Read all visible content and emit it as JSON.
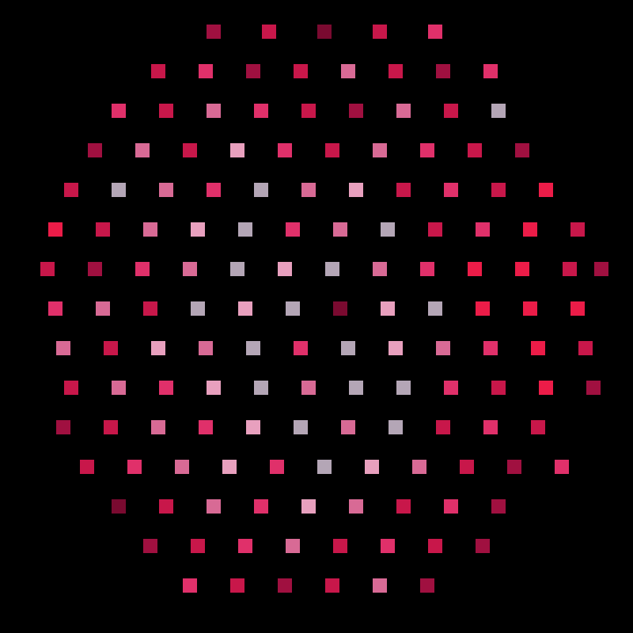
{
  "chart_data": {
    "type": "scatter",
    "marker": "s",
    "tick_labels": false,
    "grid": false,
    "xlim": [
      0,
      800
    ],
    "ylim": [
      800,
      0
    ],
    "x": [
      270,
      340,
      410,
      480,
      550,
      200,
      260,
      320,
      380,
      440,
      500,
      560,
      620,
      150,
      210,
      270,
      330,
      390,
      450,
      510,
      570,
      630,
      120,
      180,
      240,
      300,
      360,
      420,
      480,
      540,
      600,
      660,
      90,
      150,
      210,
      270,
      330,
      390,
      450,
      510,
      570,
      630,
      690,
      70,
      130,
      190,
      250,
      310,
      370,
      430,
      490,
      550,
      610,
      670,
      730,
      60,
      120,
      180,
      240,
      300,
      360,
      420,
      480,
      540,
      600,
      660,
      720,
      760,
      70,
      130,
      190,
      250,
      310,
      370,
      430,
      490,
      550,
      610,
      670,
      730,
      80,
      140,
      200,
      260,
      320,
      380,
      440,
      500,
      560,
      620,
      680,
      740,
      90,
      150,
      210,
      270,
      330,
      390,
      450,
      510,
      570,
      630,
      690,
      750,
      80,
      140,
      200,
      260,
      320,
      380,
      440,
      500,
      560,
      620,
      680,
      110,
      170,
      230,
      290,
      350,
      410,
      470,
      530,
      590,
      650,
      710,
      150,
      210,
      270,
      330,
      390,
      450,
      510,
      570,
      630,
      190,
      250,
      310,
      370,
      430,
      490,
      550,
      610,
      240,
      300,
      360,
      420,
      480,
      540
    ],
    "y": [
      40,
      40,
      40,
      40,
      40,
      90,
      90,
      90,
      90,
      90,
      90,
      90,
      90,
      140,
      140,
      140,
      140,
      140,
      140,
      140,
      140,
      140,
      190,
      190,
      190,
      190,
      190,
      190,
      190,
      190,
      190,
      190,
      240,
      240,
      240,
      240,
      240,
      240,
      240,
      240,
      240,
      240,
      240,
      290,
      290,
      290,
      290,
      290,
      290,
      290,
      290,
      290,
      290,
      290,
      290,
      340,
      340,
      340,
      340,
      340,
      340,
      340,
      340,
      340,
      340,
      340,
      340,
      340,
      390,
      390,
      390,
      390,
      390,
      390,
      390,
      390,
      390,
      390,
      390,
      390,
      440,
      440,
      440,
      440,
      440,
      440,
      440,
      440,
      440,
      440,
      440,
      440,
      490,
      490,
      490,
      490,
      490,
      490,
      490,
      490,
      490,
      490,
      490,
      490,
      540,
      540,
      540,
      540,
      540,
      540,
      540,
      540,
      540,
      540,
      540,
      590,
      590,
      590,
      590,
      590,
      590,
      590,
      590,
      590,
      590,
      590,
      640,
      640,
      640,
      640,
      640,
      640,
      640,
      640,
      640,
      690,
      690,
      690,
      690,
      690,
      690,
      690,
      690,
      740,
      740,
      740,
      740,
      740,
      740
    ],
    "colors": [
      "#a01040",
      "#c8174a",
      "#7a0a30",
      "#c8174a",
      "#e0306a",
      "#c8174a",
      "#e0306a",
      "#a01040",
      "#c8174a",
      "#d86a95",
      "#c8174a",
      "#a01040",
      "#e0306a",
      "#e0306a",
      "#c8174a",
      "#d86a95",
      "#e0306a",
      "#c8174a",
      "#a01040",
      "#d86a95",
      "#c8174a",
      "#b4a6b6",
      "#a01040",
      "#d86a95",
      "#c8174a",
      "#e8a0be",
      "#e0306a",
      "#c8174a",
      "#d86a95",
      "#e0306a",
      "#c8174a",
      "#a01040",
      "#c8174a",
      "#b4a6b6",
      "#d86a95",
      "#e0306a",
      "#b4a6b6",
      "#d86a95",
      "#e8a0be",
      "#c8174a",
      "#e0306a",
      "#c8174a",
      "#ec1c48",
      "#ec1c48",
      "#c8174a",
      "#d86a95",
      "#e8a0be",
      "#b4a6b6",
      "#e0306a",
      "#d86a95",
      "#b4a6b6",
      "#c8174a",
      "#e0306a",
      "#ec1c48",
      "#c8174a",
      "#c8174a",
      "#a01040",
      "#e0306a",
      "#d86a95",
      "#b4a6b6",
      "#e8a0be",
      "#b4a6b6",
      "#d86a95",
      "#e0306a",
      "#ec1c48",
      "#ec1c48",
      "#c8174a",
      "#a01040",
      "#e0306a",
      "#d86a95",
      "#c8174a",
      "#b4a6b6",
      "#e8a0be",
      "#b4a6b6",
      "#7a0a30",
      "#e8a0be",
      "#b4a6b6",
      "#ec1c48",
      "#ec1c48",
      "#ec1c48",
      "#d86a95",
      "#c8174a",
      "#e8a0be",
      "#d86a95",
      "#b4a6b6",
      "#e0306a",
      "#b4a6b6",
      "#e8a0be",
      "#d86a95",
      "#e0306a",
      "#ec1c48",
      "#c8174a",
      "#c8174a",
      "#d86a95",
      "#e0306a",
      "#e8a0be",
      "#b4a6b6",
      "#d86a95",
      "#b4a6b6",
      "#b4a6b6",
      "#e0306a",
      "#c8174a",
      "#ec1c48",
      "#a01040",
      "#a01040",
      "#c8174a",
      "#d86a95",
      "#e0306a",
      "#e8a0be",
      "#b4a6b6",
      "#d86a95",
      "#b4a6b6",
      "#c8174a",
      "#e0306a",
      "#c8174a",
      "#c8174a",
      "#e0306a",
      "#d86a95",
      "#e8a0be",
      "#e0306a",
      "#b4a6b6",
      "#e8a0be",
      "#d86a95",
      "#c8174a",
      "#a01040",
      "#e0306a",
      "#7a0a30",
      "#c8174a",
      "#d86a95",
      "#e0306a",
      "#e8a0be",
      "#d86a95",
      "#c8174a",
      "#e0306a",
      "#a01040",
      "#a01040",
      "#c8174a",
      "#e0306a",
      "#d86a95",
      "#c8174a",
      "#e0306a",
      "#c8174a",
      "#a01040",
      "#e0306a",
      "#c8174a",
      "#a01040",
      "#c8174a",
      "#d86a95",
      "#a01040"
    ]
  }
}
